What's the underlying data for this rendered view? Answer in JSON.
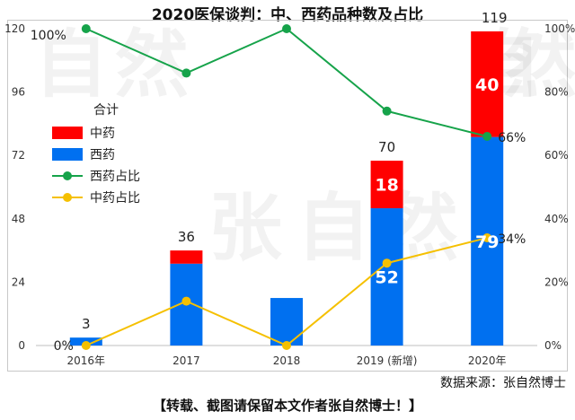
{
  "title": "2020医保谈判：中、西药品种数及占比",
  "watermark_text": [
    "自",
    "然",
    "张",
    "自",
    "然",
    "自",
    "然"
  ],
  "source_text": "数据来源：张自然博士",
  "footer_text": "【转载、截图请保留本文作者张自然博士！】",
  "legend": {
    "head": "合计",
    "items": [
      {
        "label": "中药",
        "kind": "bar",
        "color": "#ff0000"
      },
      {
        "label": "西药",
        "kind": "bar",
        "color": "#0070f0"
      },
      {
        "label": "西药占比",
        "kind": "line",
        "color": "#16a34a"
      },
      {
        "label": "中药占比",
        "kind": "line",
        "color": "#f5c000"
      }
    ]
  },
  "chart_data": {
    "type": "bar",
    "categories": [
      "2016年",
      "2017",
      "2018",
      "2019 (新增)",
      "2020年"
    ],
    "series": [
      {
        "name": "西药",
        "type": "bar",
        "stack": "total",
        "values": [
          3,
          31,
          18,
          52,
          79
        ],
        "color": "#0070f0",
        "data_labels": [
          "",
          "",
          "",
          "52",
          "79"
        ]
      },
      {
        "name": "中药",
        "type": "bar",
        "stack": "total",
        "values": [
          0,
          5,
          0,
          18,
          40
        ],
        "color": "#ff0000",
        "data_labels": [
          "",
          "",
          "",
          "18",
          "40"
        ]
      },
      {
        "name": "西药占比",
        "type": "line",
        "axis": "right",
        "values": [
          100,
          86,
          100,
          74,
          66
        ],
        "color": "#16a34a"
      },
      {
        "name": "中药占比",
        "type": "line",
        "axis": "right",
        "values": [
          0,
          14,
          0,
          26,
          34
        ],
        "color": "#f5c000"
      }
    ],
    "total_labels": [
      "3",
      "36",
      "",
      "70",
      "119"
    ],
    "ratio_labels": {
      "100%": [
        0
      ],
      "66%": [
        4
      ],
      "0%": [
        0
      ],
      "34%": [
        4
      ]
    },
    "y_left": {
      "min": 0,
      "max": 120,
      "ticks": [
        "0",
        "24",
        "48",
        "72",
        "96",
        "120"
      ]
    },
    "y_right": {
      "min": 0,
      "max": 100,
      "ticks": [
        "0%",
        "20%",
        "40%",
        "60%",
        "80%",
        "100%"
      ]
    },
    "grid": false,
    "legend_position": "left"
  }
}
